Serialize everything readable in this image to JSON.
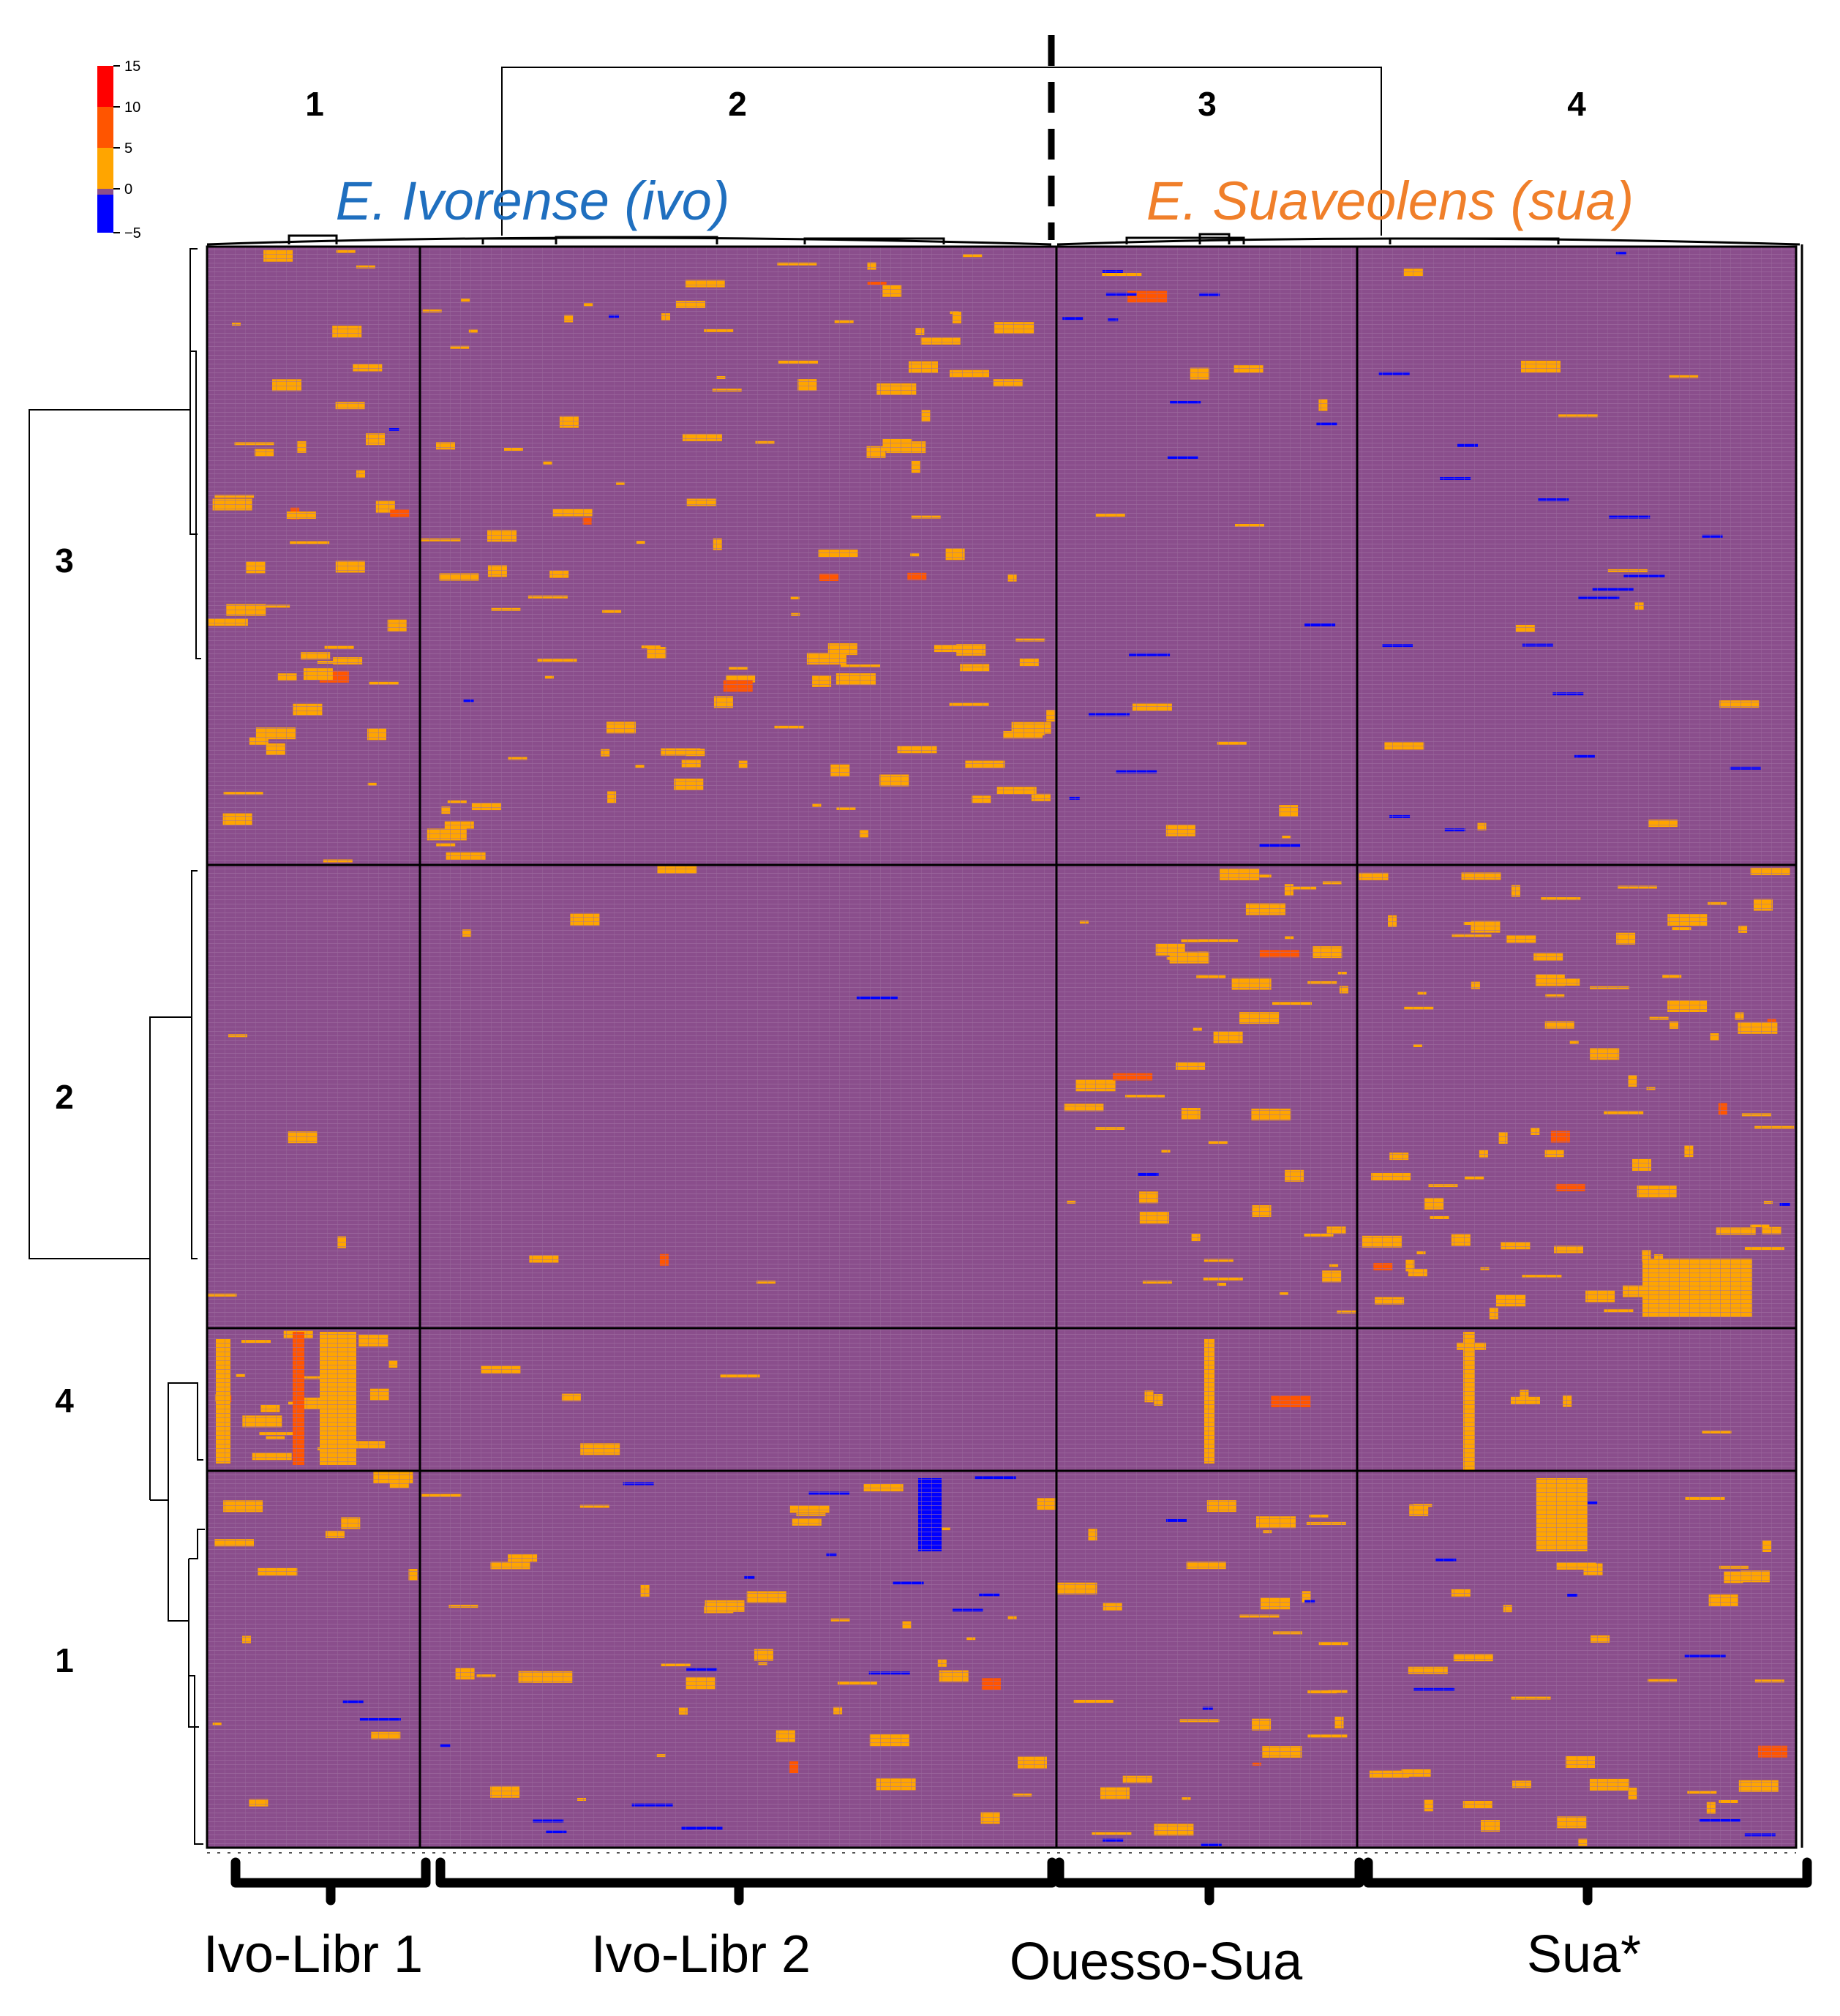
{
  "chart_data": {
    "type": "heatmap",
    "legend": {
      "placement": "top-left",
      "ticks": [
        "15",
        "10",
        "5",
        "0",
        "−5"
      ],
      "colors": [
        "#ff0000",
        "#ff5500",
        "#ffa500",
        "#8a4e8c",
        "#0000ff"
      ]
    },
    "species_labels": [
      {
        "text": "E. Ivorense (ivo)",
        "color": "#1f6fbf"
      },
      {
        "text": "E. Suaveolens (sua)",
        "color": "#f07f2a"
      }
    ],
    "column_clusters": [
      "1",
      "2",
      "3",
      "4"
    ],
    "row_clusters": [
      "3",
      "2",
      "4",
      "1"
    ],
    "column_groups": [
      "Ivo-Libr 1",
      "Ivo-Libr 2",
      "Ouesso-Sua",
      "Sua*"
    ],
    "background_value": 0,
    "cell_colors": {
      "background": "#8a4e8c",
      "high": "#ffa500",
      "very_high": "#ff5500",
      "low": "#0000ff"
    }
  }
}
